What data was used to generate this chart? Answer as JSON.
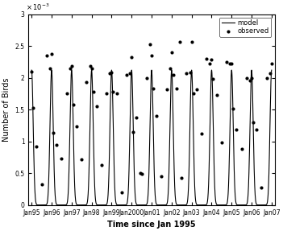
{
  "xlabel": "Time since Jan 1995",
  "ylabel": "Number of Birds",
  "ylim": [
    0,
    0.003
  ],
  "xtick_labels": [
    "Jan95",
    "Jan96",
    "Jan97",
    "Jan98",
    "Jan99",
    "Jan2000",
    "Jan01",
    "Jan02",
    "Jan03",
    "Jan04",
    "Jan05",
    "Jan06",
    "Jan07"
  ],
  "xtick_positions": [
    0,
    1,
    2,
    3,
    4,
    5,
    6,
    7,
    8,
    9,
    10,
    11,
    12
  ],
  "legend_model": "model",
  "legend_observed": "observed",
  "line_color": "#000000",
  "dot_color": "#000000",
  "observed_dots": [
    [
      0.0,
      0.0021
    ],
    [
      0.08,
      0.00153
    ],
    [
      0.25,
      0.00092
    ],
    [
      0.5,
      0.00033
    ],
    [
      0.75,
      0.00235
    ],
    [
      0.92,
      0.00215
    ],
    [
      1.0,
      0.00238
    ],
    [
      1.08,
      0.00113
    ],
    [
      1.25,
      0.00095
    ],
    [
      1.5,
      0.00073
    ],
    [
      1.75,
      0.00175
    ],
    [
      1.92,
      0.00215
    ],
    [
      2.0,
      0.00218
    ],
    [
      2.08,
      0.00158
    ],
    [
      2.25,
      0.00123
    ],
    [
      2.5,
      0.00072
    ],
    [
      2.75,
      0.00193
    ],
    [
      2.92,
      0.00218
    ],
    [
      3.0,
      0.00215
    ],
    [
      3.08,
      0.00178
    ],
    [
      3.25,
      0.00155
    ],
    [
      3.5,
      0.00063
    ],
    [
      3.75,
      0.00175
    ],
    [
      3.92,
      0.00207
    ],
    [
      4.0,
      0.00208
    ],
    [
      4.08,
      0.00178
    ],
    [
      4.25,
      0.00175
    ],
    [
      4.5,
      0.0002
    ],
    [
      4.75,
      0.00205
    ],
    [
      4.92,
      0.00207
    ],
    [
      5.0,
      0.00232
    ],
    [
      5.08,
      0.00115
    ],
    [
      5.25,
      0.00137
    ],
    [
      5.42,
      0.0005
    ],
    [
      5.5,
      0.00049
    ],
    [
      5.75,
      0.002
    ],
    [
      5.92,
      0.00252
    ],
    [
      6.0,
      0.00235
    ],
    [
      6.08,
      0.00183
    ],
    [
      6.25,
      0.0014
    ],
    [
      6.5,
      0.00045
    ],
    [
      6.75,
      0.00182
    ],
    [
      6.92,
      0.00215
    ],
    [
      7.0,
      0.0024
    ],
    [
      7.08,
      0.00205
    ],
    [
      7.25,
      0.00183
    ],
    [
      7.42,
      0.00256
    ],
    [
      7.5,
      0.00042
    ],
    [
      7.75,
      0.00207
    ],
    [
      7.92,
      0.00208
    ],
    [
      8.0,
      0.00256
    ],
    [
      8.08,
      0.00175
    ],
    [
      8.25,
      0.00182
    ],
    [
      8.5,
      0.00112
    ],
    [
      8.75,
      0.0023
    ],
    [
      8.92,
      0.00222
    ],
    [
      9.0,
      0.00228
    ],
    [
      9.08,
      0.00198
    ],
    [
      9.25,
      0.00173
    ],
    [
      9.5,
      0.00098
    ],
    [
      9.75,
      0.00225
    ],
    [
      9.92,
      0.00222
    ],
    [
      10.0,
      0.00222
    ],
    [
      10.08,
      0.00152
    ],
    [
      10.25,
      0.00118
    ],
    [
      10.5,
      0.00088
    ],
    [
      10.75,
      0.002
    ],
    [
      10.92,
      0.00196
    ],
    [
      11.0,
      0.002
    ],
    [
      11.08,
      0.0013
    ],
    [
      11.25,
      0.00118
    ],
    [
      11.5,
      0.00027
    ],
    [
      11.75,
      0.002
    ],
    [
      11.92,
      0.00207
    ],
    [
      12.0,
      0.00222
    ]
  ]
}
